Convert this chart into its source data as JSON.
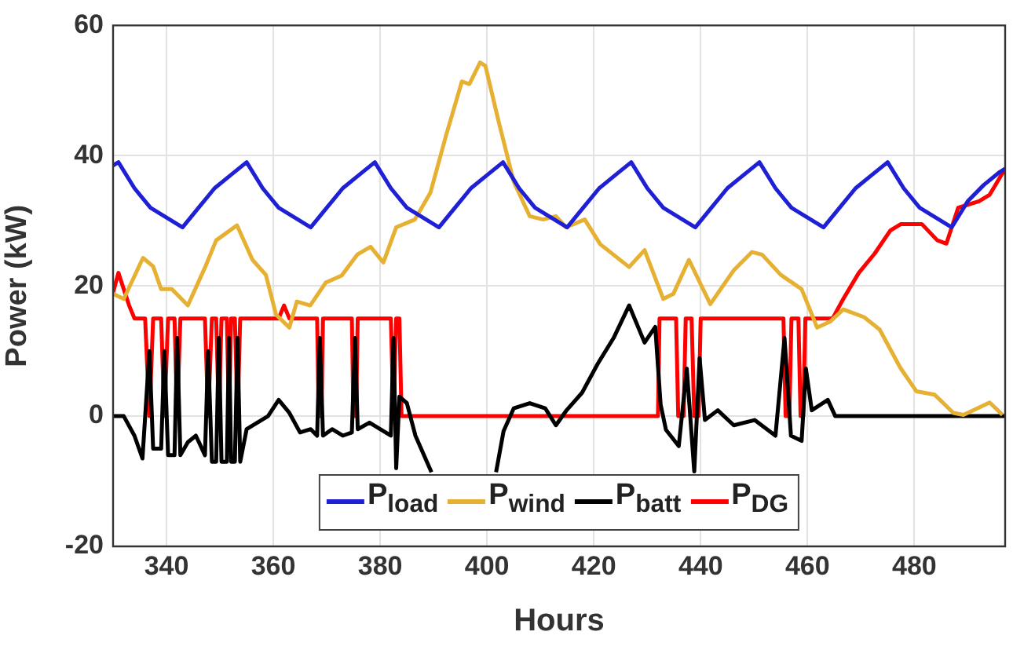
{
  "chart_data": {
    "type": "line",
    "xlabel": "Hours",
    "ylabel": "Power (kW)",
    "xlim": [
      330,
      497
    ],
    "xticks": [
      340,
      360,
      380,
      400,
      420,
      440,
      460,
      480
    ],
    "ylim": [
      -20,
      60
    ],
    "yticks": [
      -20,
      0,
      20,
      40,
      60
    ],
    "grid": true,
    "legend": "bottom",
    "marker": "none",
    "line_style": "solid",
    "series": [
      {
        "name": "P$_{load}$",
        "color": "#1f1fd6",
        "x": [
          330,
          331,
          334,
          337,
          340,
          343,
          346,
          349,
          352,
          355,
          358,
          361,
          364,
          367,
          370,
          373,
          376,
          379,
          382,
          385,
          388,
          391,
          394,
          397,
          400,
          403,
          406,
          409,
          412,
          415,
          418,
          421,
          424,
          427,
          430,
          433,
          436,
          439,
          442,
          445,
          448,
          451,
          454,
          457,
          460,
          463,
          466,
          469,
          472,
          475,
          478,
          481,
          484,
          487,
          490,
          493,
          496,
          497
        ],
        "values": [
          38.5,
          39,
          35,
          32,
          30.5,
          29,
          32,
          35,
          37,
          39,
          35,
          32,
          30.5,
          29,
          32,
          35,
          37,
          39,
          35,
          32,
          30.5,
          29,
          32,
          35,
          37,
          39,
          35,
          32,
          30.5,
          29,
          32,
          35,
          37,
          39,
          35,
          32,
          30.5,
          29,
          32,
          35,
          37,
          39,
          35,
          32,
          30.5,
          29,
          32,
          35,
          37,
          39,
          35,
          32,
          30.5,
          29,
          33,
          35.5,
          37.5,
          38
        ]
      },
      {
        "name": "P$_{wind}$",
        "color": "#e6b032",
        "x": [
          330,
          332,
          335.6,
          337.5,
          339,
          341,
          344,
          347.3,
          349.3,
          353.2,
          356.1,
          358.6,
          360.5,
          363,
          364.4,
          366.9,
          369.8,
          372.8,
          375.7,
          378.2,
          380.6,
          383,
          386.5,
          389.4,
          392.3,
          395.3,
          396.7,
          398.7,
          399.7,
          402.1,
          405,
          408,
          410.5,
          412.9,
          414.8,
          418.3,
          421.2,
          426.6,
          429.5,
          433,
          434.9,
          437.8,
          441.8,
          446.2,
          449.6,
          451.5,
          455,
          458.9,
          461.8,
          464.2,
          466.7,
          470.6,
          473.5,
          477.4,
          480.4,
          483.8,
          487.3,
          489.2,
          494.1,
          496.5
        ],
        "values": [
          18.8,
          18,
          24.3,
          23,
          19.5,
          19.5,
          17,
          23,
          27,
          29.3,
          24,
          21.7,
          15.6,
          13.6,
          17.6,
          17,
          20.5,
          21.6,
          24.8,
          26,
          23.6,
          29,
          30.2,
          34.3,
          43,
          51.4,
          51,
          54.3,
          53.8,
          45.5,
          36,
          30.7,
          30.2,
          30.7,
          29,
          30.2,
          26.4,
          22.9,
          25.5,
          18,
          18.8,
          24,
          17.2,
          22.4,
          25.2,
          24.8,
          21.7,
          19.5,
          13.6,
          14.5,
          16.4,
          15.2,
          13.3,
          7.4,
          3.8,
          3.3,
          0.5,
          0.2,
          2.1,
          0.2
        ]
      },
      {
        "name": "P$_{batt}$",
        "color": "#000000",
        "x": [
          330,
          332,
          334,
          335.5,
          336.8,
          337.5,
          339,
          339.6,
          340.3,
          341.5,
          342,
          342.6,
          344,
          345.5,
          347.2,
          347.8,
          348.5,
          349.3,
          349.8,
          350.3,
          351.3,
          351.7,
          352.1,
          352.8,
          353.3,
          353.8,
          355,
          357,
          359,
          361,
          363,
          365,
          367,
          368.2,
          368.7,
          369.3,
          371,
          373,
          374.7,
          375.3,
          375.8,
          378,
          380,
          382,
          382.5,
          383,
          383.6,
          385,
          386.6,
          389.6,
          395,
          401.7,
          403.1,
          405,
          408,
          410.9,
          412.9,
          414.8,
          417.8,
          420.7,
          423.7,
          426.6,
          429.5,
          431.5,
          432.5,
          433.5,
          435.9,
          437.4,
          438.8,
          439.8,
          440.8,
          443.2,
          446.2,
          450.1,
          454,
          455.7,
          456.9,
          458.9,
          459.7,
          460.8,
          463.8,
          465.2,
          497
        ],
        "values": [
          0,
          0,
          -3,
          -6.5,
          10,
          -5,
          -5,
          10,
          -6,
          -6,
          12,
          -6,
          -4,
          -3,
          -6,
          10,
          -7,
          -7,
          12,
          -7,
          -7,
          12,
          -7,
          -7,
          12,
          -7,
          -2,
          -1,
          0,
          2.5,
          0.5,
          -2.5,
          -2,
          -3,
          12,
          -3,
          -2,
          -3,
          -2.5,
          12,
          -2,
          -1,
          -2,
          -3,
          12,
          -8,
          3,
          2,
          -3,
          -8.6,
          null,
          -8.6,
          -2.3,
          1.2,
          2,
          1.2,
          -1.4,
          0.8,
          3.6,
          8,
          12,
          17,
          11.3,
          13.7,
          1.8,
          -2.1,
          -4.6,
          7.3,
          -8.5,
          8.9,
          -0.6,
          0.9,
          -1.4,
          -0.6,
          -3,
          12,
          -3,
          -3.8,
          7.3,
          0.9,
          2.5,
          0,
          0
        ]
      },
      {
        "name": "P$_{DG}$",
        "color": "#ff0000",
        "x": [
          330,
          331,
          333,
          334,
          336,
          336.8,
          337.5,
          339,
          339.6,
          340.3,
          341.5,
          342,
          342.6,
          347.2,
          347.8,
          348.5,
          349.3,
          349.8,
          350.3,
          351.3,
          351.7,
          352.1,
          352.8,
          353.3,
          353.8,
          361,
          362,
          363,
          368.2,
          368.5,
          369,
          369.3,
          374.7,
          375,
          375.5,
          375.8,
          382,
          382.5,
          383,
          383.6,
          384,
          432,
          432.3,
          435.4,
          435.8,
          436.8,
          437.2,
          438.3,
          438.8,
          439.6,
          440,
          455.5,
          455.9,
          456.6,
          457,
          458.3,
          458.7,
          459.2,
          459.6,
          464.7,
          466.7,
          469.6,
          472.6,
          475.5,
          477.5,
          481.4,
          484.3,
          486,
          488.2,
          492.1,
          494.1,
          497
        ],
        "values": [
          19,
          22,
          17,
          15,
          15,
          0,
          15,
          15,
          0,
          15,
          15,
          0,
          15,
          15,
          0,
          15,
          15,
          0,
          15,
          15,
          0,
          15,
          15,
          0,
          15,
          15,
          17,
          15,
          15,
          0,
          0,
          15,
          15,
          0,
          0,
          15,
          15,
          0,
          15,
          15,
          0,
          0,
          15,
          15,
          0,
          0,
          15,
          15,
          0,
          0,
          15,
          15,
          0,
          0,
          15,
          15,
          0,
          0,
          15,
          15,
          18,
          22,
          25,
          28.5,
          29.5,
          29.5,
          27,
          26.5,
          32,
          33,
          34,
          38
        ]
      }
    ]
  }
}
